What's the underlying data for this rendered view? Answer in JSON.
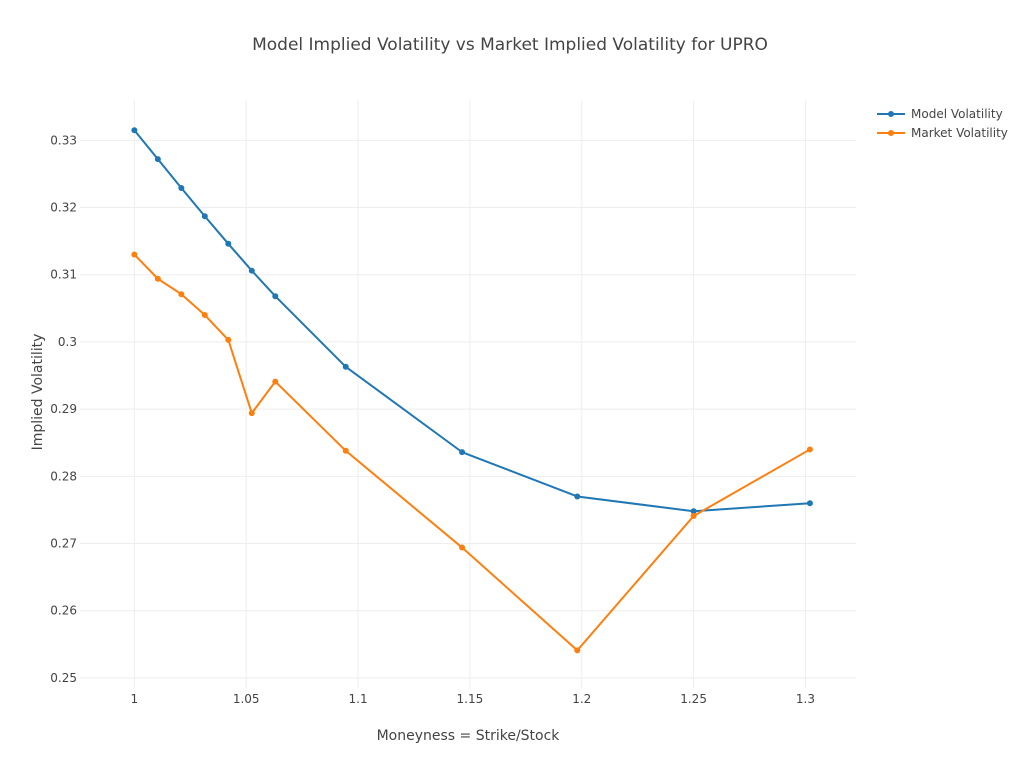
{
  "chart_data": {
    "type": "line",
    "title": "Model Implied Volatility vs Market Implied Volatility for UPRO",
    "xlabel": "Moneyness = Strike/Stock",
    "ylabel": "Implied Volatility",
    "xlim": [
      0.9757,
      1.3226
    ],
    "ylim": [
      0.2485,
      0.336
    ],
    "xticks": [
      1,
      1.05,
      1.1,
      1.15,
      1.2,
      1.25,
      1.3
    ],
    "xtick_labels": [
      "1",
      "1.05",
      "1.1",
      "1.15",
      "1.2",
      "1.25",
      "1.3"
    ],
    "yticks": [
      0.25,
      0.26,
      0.27,
      0.28,
      0.29,
      0.3,
      0.31,
      0.32,
      0.33
    ],
    "ytick_labels": [
      "0.25",
      "0.26",
      "0.27",
      "0.28",
      "0.29",
      "0.3",
      "0.31",
      "0.32",
      "0.33"
    ],
    "grid": true,
    "legend_position": "top-right",
    "x": [
      1.0,
      1.0105,
      1.021,
      1.0315,
      1.042,
      1.0525,
      1.063,
      1.0945,
      1.1465,
      1.198,
      1.25,
      1.302
    ],
    "series": [
      {
        "name": "Model Volatility",
        "color": "#1f77b4",
        "values": [
          0.3315,
          0.3272,
          0.3229,
          0.3187,
          0.3146,
          0.3106,
          0.3068,
          0.2963,
          0.2836,
          0.277,
          0.2748,
          0.276
        ]
      },
      {
        "name": "Market Volatility",
        "color": "#ff7f0e",
        "values": [
          0.313,
          0.3094,
          0.3071,
          0.304,
          0.3003,
          0.2894,
          0.2941,
          0.2838,
          0.2694,
          0.2541,
          0.2741,
          0.284
        ]
      }
    ]
  }
}
